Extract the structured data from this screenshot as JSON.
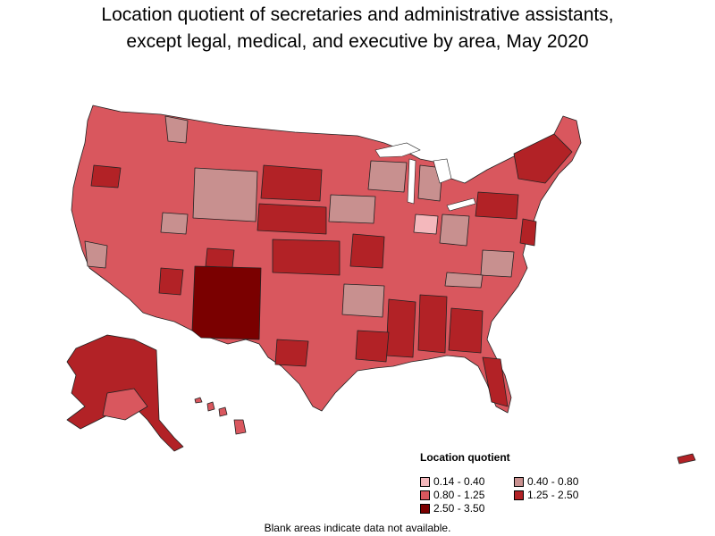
{
  "title_line1": "Location quotient of secretaries and administrative assistants,",
  "title_line2": "except legal, medical, and executive by area, May 2020",
  "legend": {
    "title": "Location quotient",
    "items": [
      {
        "label": "0.14 - 0.40",
        "color": "#f4b8bc"
      },
      {
        "label": "0.40 - 0.80",
        "color": "#c8908f"
      },
      {
        "label": "0.80 - 1.25",
        "color": "#d9575e"
      },
      {
        "label": "1.25 - 2.50",
        "color": "#b22226"
      },
      {
        "label": "2.50 - 3.50",
        "color": "#7a0000"
      }
    ]
  },
  "footnote": "Blank areas indicate data not available."
}
